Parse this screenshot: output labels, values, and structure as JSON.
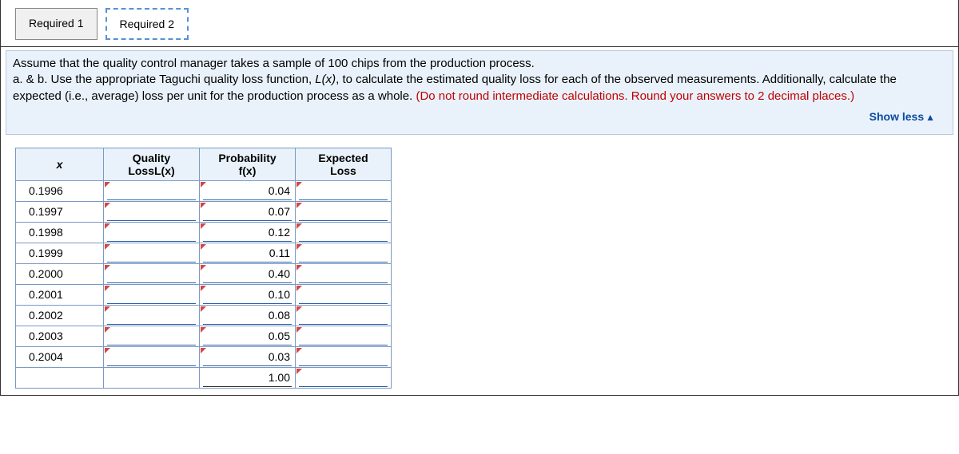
{
  "tabs": {
    "t1": "Required 1",
    "t2": "Required 2"
  },
  "prompt": {
    "l1": "Assume that the quality control manager takes a sample of 100 chips from the production process.",
    "l2a": "a. & b. Use the appropriate Taguchi quality loss function, ",
    "l2b": "L(x)",
    "l2c": ", to calculate the estimated quality loss for each of the observed measurements. Additionally, calculate the expected (i.e., average) loss per unit for the production process as a whole. ",
    "note": "(Do not round intermediate calculations. Round your answers to 2 decimal places.)"
  },
  "showless": "Show less",
  "headers": {
    "x": "x",
    "q1": "Quality",
    "q2": "LossL(x)",
    "p1": "Probability",
    "p2": "f(x)",
    "e1": "Expected",
    "e2": "Loss"
  },
  "rows": [
    {
      "x": "0.1996",
      "q": "",
      "p": "0.04",
      "e": ""
    },
    {
      "x": "0.1997",
      "q": "",
      "p": "0.07",
      "e": ""
    },
    {
      "x": "0.1998",
      "q": "",
      "p": "0.12",
      "e": ""
    },
    {
      "x": "0.1999",
      "q": "",
      "p": "0.11",
      "e": ""
    },
    {
      "x": "0.2000",
      "q": "",
      "p": "0.40",
      "e": ""
    },
    {
      "x": "0.2001",
      "q": "",
      "p": "0.10",
      "e": ""
    },
    {
      "x": "0.2002",
      "q": "",
      "p": "0.08",
      "e": ""
    },
    {
      "x": "0.2003",
      "q": "",
      "p": "0.05",
      "e": ""
    },
    {
      "x": "0.2004",
      "q": "",
      "p": "0.03",
      "e": ""
    }
  ],
  "total": {
    "x": "",
    "q": "",
    "p": "1.00",
    "e": ""
  }
}
